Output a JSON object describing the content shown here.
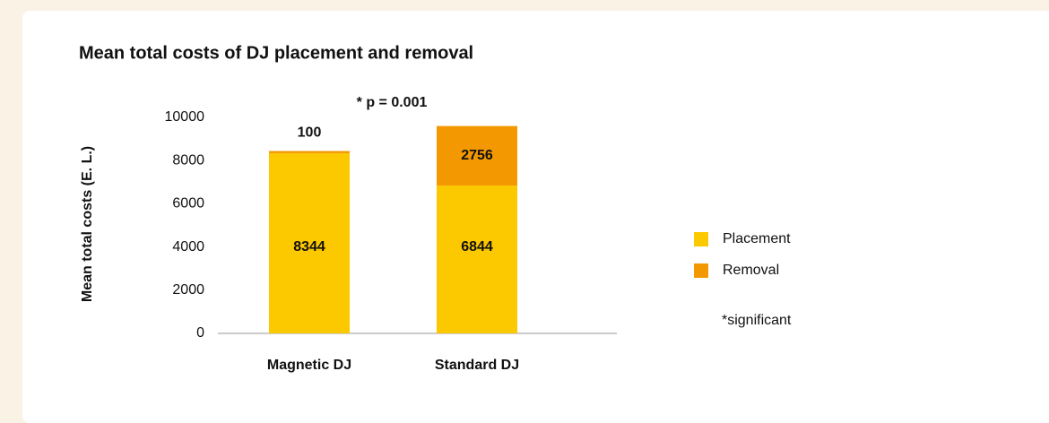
{
  "chart_data": {
    "type": "stacked_bar",
    "title": "Mean total costs of DJ placement and removal",
    "y_label": "Mean total costs (E. L.)",
    "categories": [
      "Magnetic DJ",
      "Standard DJ"
    ],
    "series": [
      {
        "name": "Placement",
        "color": "#fcc800",
        "values": [
          8344,
          6844
        ]
      },
      {
        "name": "Removal",
        "color": "#f39800",
        "values": [
          100,
          2756
        ]
      }
    ],
    "ylim": [
      0,
      10000
    ],
    "yticks": [
      0,
      2000,
      4000,
      6000,
      8000,
      10000
    ],
    "grid": false,
    "legend": "right",
    "annotations": [
      "* p = 0.001",
      "*significant"
    ]
  }
}
